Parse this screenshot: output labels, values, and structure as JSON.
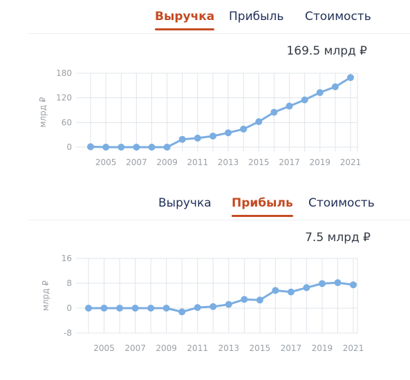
{
  "colors": {
    "accent": "#c44a22",
    "tab_text": "#1f2f57",
    "series": "#7aade2",
    "grid": "#dfe4ea",
    "axis_text": "#9aa0a6"
  },
  "panel1": {
    "tabs": [
      {
        "label": "Выручка",
        "active": true
      },
      {
        "label": "Прибыль",
        "active": false
      },
      {
        "label": "Стоимость",
        "active": false
      }
    ],
    "headline": "169.5 млрд ₽"
  },
  "panel2": {
    "tabs": [
      {
        "label": "Выручка",
        "active": false
      },
      {
        "label": "Прибыль",
        "active": true
      },
      {
        "label": "Стоимость",
        "active": false
      }
    ],
    "headline": "7.5 млрд ₽"
  },
  "chart_data": [
    {
      "type": "line",
      "ylabel": "млрд ₽",
      "ylim": [
        0,
        180
      ],
      "yticks": [
        0,
        60,
        120,
        180
      ],
      "xlim": [
        2004,
        2021
      ],
      "xticks": [
        2005,
        2007,
        2009,
        2011,
        2013,
        2015,
        2017,
        2019,
        2021
      ],
      "grid": true,
      "x": [
        2004,
        2005,
        2006,
        2007,
        2008,
        2009,
        2010,
        2011,
        2012,
        2013,
        2014,
        2015,
        2016,
        2017,
        2018,
        2019,
        2020,
        2021
      ],
      "series": [
        {
          "values": [
            1,
            0,
            0,
            0,
            0,
            0,
            19,
            22,
            27,
            35,
            44,
            62,
            85,
            100,
            115,
            133,
            147,
            169.5
          ]
        }
      ]
    },
    {
      "type": "line",
      "ylabel": "млрд ₽",
      "ylim": [
        -8,
        16
      ],
      "yticks": [
        -8,
        0,
        8,
        16
      ],
      "xlim": [
        2004,
        2021
      ],
      "xticks": [
        2005,
        2007,
        2009,
        2011,
        2013,
        2015,
        2017,
        2019,
        2021
      ],
      "grid": true,
      "x": [
        2004,
        2005,
        2006,
        2007,
        2008,
        2009,
        2010,
        2011,
        2012,
        2013,
        2014,
        2015,
        2016,
        2017,
        2018,
        2019,
        2020,
        2021
      ],
      "series": [
        {
          "values": [
            0,
            0,
            0,
            0,
            0,
            0,
            -1.2,
            0.2,
            0.5,
            1.2,
            2.8,
            2.6,
            5.7,
            5.2,
            6.6,
            7.9,
            8.2,
            7.5
          ]
        }
      ]
    }
  ]
}
